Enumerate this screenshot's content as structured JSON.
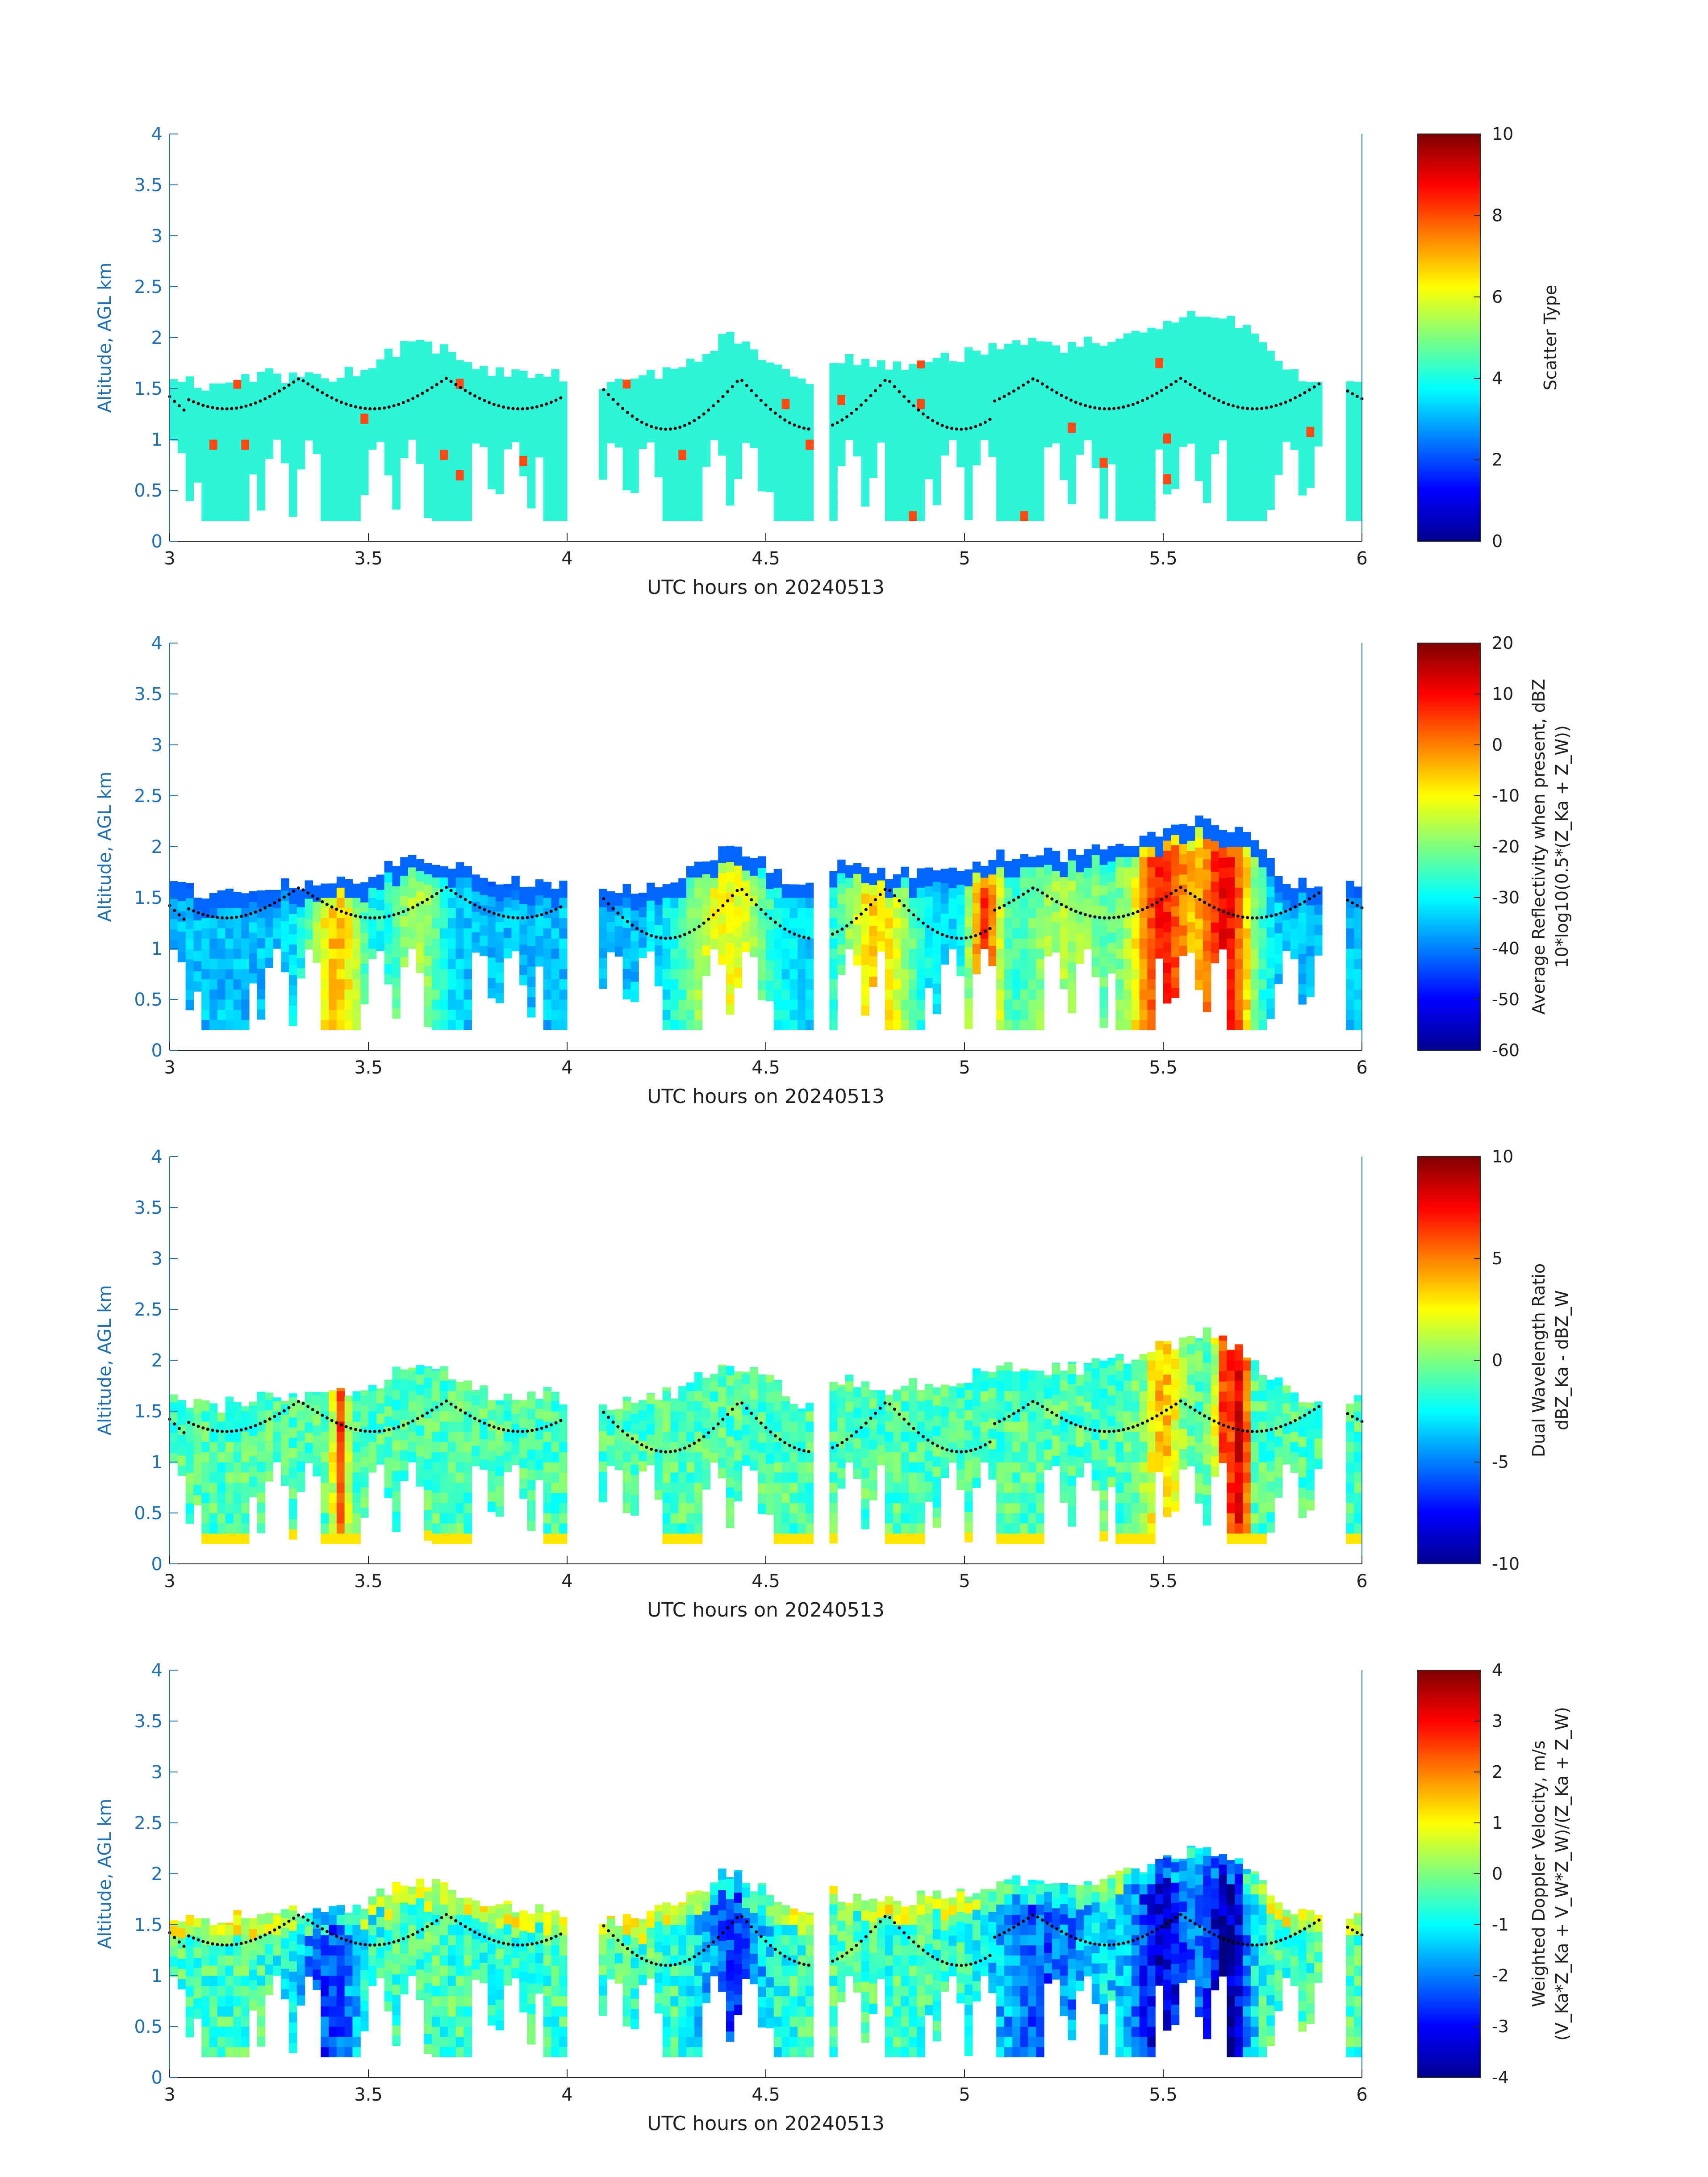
{
  "chart_data": [
    {
      "type": "heatmap",
      "xlabel": "UTC hours on 20240513",
      "ylabel": "Altitude, AGL km",
      "xlim": [
        3,
        6
      ],
      "ylim": [
        0,
        4
      ],
      "xticks": [
        "3",
        "3.5",
        "4",
        "4.5",
        "5",
        "5.5",
        "6"
      ],
      "yticks": [
        "0",
        "0.5",
        "1",
        "1.5",
        "2",
        "2.5",
        "3",
        "3.5",
        "4"
      ],
      "colorbar": {
        "label_lines": [
          "Scatter Type"
        ],
        "range": [
          0,
          10
        ],
        "ticks": [
          "0",
          "2",
          "4",
          "6",
          "8",
          "10"
        ],
        "colormap": "jet"
      },
      "dominant_value": 4,
      "echo_top_km": [
        [
          3.0,
          1.7
        ],
        [
          3.1,
          1.6
        ],
        [
          3.2,
          1.7
        ],
        [
          3.3,
          1.7
        ],
        [
          3.4,
          1.7
        ],
        [
          3.5,
          1.8
        ],
        [
          3.6,
          2.0
        ],
        [
          3.7,
          1.95
        ],
        [
          3.8,
          1.75
        ],
        [
          3.95,
          1.75
        ],
        [
          4.1,
          1.6
        ],
        [
          4.3,
          1.8
        ],
        [
          4.4,
          2.1
        ],
        [
          4.5,
          1.9
        ],
        [
          4.6,
          1.6
        ],
        [
          4.65,
          1.9
        ],
        [
          4.8,
          1.8
        ],
        [
          5.0,
          1.9
        ],
        [
          5.1,
          2.0
        ],
        [
          5.3,
          2.0
        ],
        [
          5.5,
          2.2
        ],
        [
          5.6,
          2.35
        ],
        [
          5.7,
          2.2
        ],
        [
          5.8,
          1.8
        ],
        [
          5.85,
          1.7
        ],
        [
          5.95,
          1.7
        ],
        [
          6.0,
          1.65
        ]
      ]
    },
    {
      "type": "heatmap",
      "xlabel": "UTC hours on 20240513",
      "ylabel": "Altitude, AGL km",
      "xlim": [
        3,
        6
      ],
      "ylim": [
        0,
        4
      ],
      "xticks": [
        "3",
        "3.5",
        "4",
        "4.5",
        "5",
        "5.5",
        "6"
      ],
      "yticks": [
        "0",
        "0.5",
        "1",
        "1.5",
        "2",
        "2.5",
        "3",
        "3.5",
        "4"
      ],
      "colorbar": {
        "label_lines": [
          "Average Reflectivity when present, dBZ",
          "10*log10(0.5*(Z_Ka + Z_W))"
        ],
        "range": [
          -60,
          20
        ],
        "ticks": [
          "-60",
          "-50",
          "-40",
          "-30",
          "-20",
          "-10",
          "0",
          "10",
          "20"
        ],
        "colormap": "jet"
      },
      "core_values_dBZ": [
        [
          3.4,
          5
        ],
        [
          3.6,
          -20
        ],
        [
          4.4,
          -15
        ],
        [
          4.75,
          -5
        ],
        [
          5.05,
          5
        ],
        [
          5.5,
          10
        ],
        [
          5.65,
          12
        ]
      ]
    },
    {
      "type": "heatmap",
      "xlabel": "UTC hours on 20240513",
      "ylabel": "Altitude, AGL km",
      "xlim": [
        3,
        6
      ],
      "ylim": [
        0,
        4
      ],
      "xticks": [
        "3",
        "3.5",
        "4",
        "4.5",
        "5",
        "5.5",
        "6"
      ],
      "yticks": [
        "0",
        "0.5",
        "1",
        "1.5",
        "2",
        "2.5",
        "3",
        "3.5",
        "4"
      ],
      "colorbar": {
        "label_lines": [
          "Dual Wavelength Ratio",
          "dBZ_Ka - dBZ_W"
        ],
        "range": [
          -10,
          10
        ],
        "ticks": [
          "-10",
          "-5",
          "0",
          "5",
          "10"
        ],
        "colormap": "jet"
      },
      "core_values_dB": [
        [
          3.43,
          6
        ],
        [
          5.5,
          5
        ],
        [
          5.65,
          8
        ],
        [
          5.7,
          10
        ]
      ]
    },
    {
      "type": "heatmap",
      "xlabel": "UTC hours on 20240513",
      "ylabel": "Altitude, AGL km",
      "xlim": [
        3,
        6
      ],
      "ylim": [
        0,
        4
      ],
      "xticks": [
        "3",
        "3.5",
        "4",
        "4.5",
        "5",
        "5.5",
        "6"
      ],
      "yticks": [
        "0",
        "0.5",
        "1",
        "1.5",
        "2",
        "2.5",
        "3",
        "3.5",
        "4"
      ],
      "colorbar": {
        "label_lines": [
          "Weighted Doppler Velocity, m/s",
          "(V_Ka*Z_Ka + V_W*Z_W)/(Z_Ka + Z_W)"
        ],
        "range": [
          -4,
          4
        ],
        "ticks": [
          "-4",
          "-3",
          "-2",
          "-1",
          "0",
          "1",
          "2",
          "3",
          "4"
        ],
        "colormap": "jet"
      },
      "core_values_ms": [
        [
          3.4,
          -2.5
        ],
        [
          4.4,
          -2
        ],
        [
          5.2,
          -2
        ],
        [
          5.5,
          -3
        ],
        [
          5.65,
          -3.5
        ]
      ]
    }
  ]
}
